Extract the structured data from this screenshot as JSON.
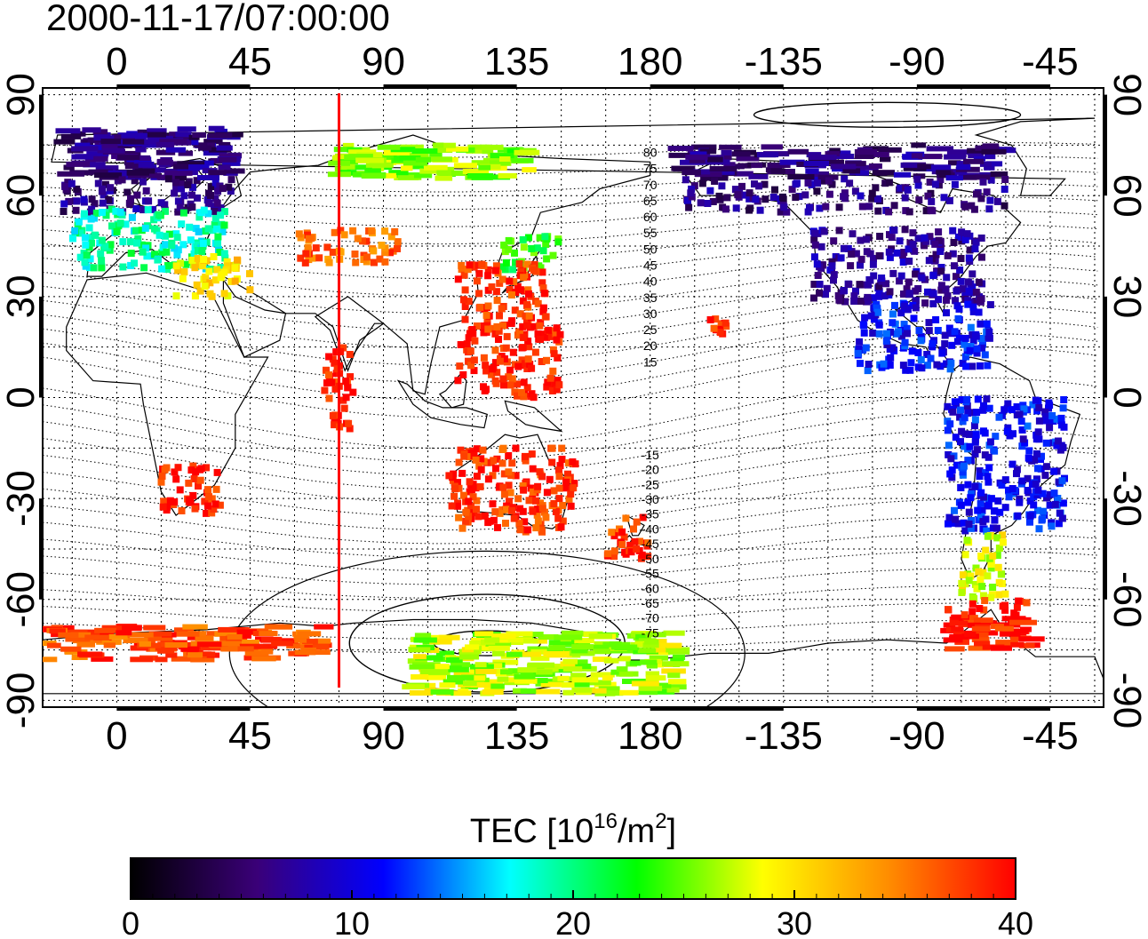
{
  "title": "2000-11-17/07:00:00",
  "map": {
    "top_lon_ticks": [
      "0",
      "45",
      "90",
      "135",
      "180",
      "-135",
      "-90",
      "-45"
    ],
    "bottom_lon_ticks": [
      "0",
      "45",
      "90",
      "135",
      "180",
      "-135",
      "-90",
      "-45"
    ],
    "lat_ticks": [
      "90",
      "60",
      "30",
      "0",
      "-30",
      "-60",
      "-90"
    ],
    "lon_range": [
      -25,
      333
    ],
    "lat_range": [
      -92,
      92
    ],
    "highlight_meridian_lon": 75,
    "highlight_color": "#ff0000",
    "magnetic_lat_labels_north": [
      "80",
      "75",
      "70",
      "65",
      "60",
      "55",
      "50",
      "45",
      "40",
      "35",
      "30",
      "25",
      "20",
      "15"
    ],
    "magnetic_lat_labels_south": [
      "-15",
      "-20",
      "-25",
      "-30",
      "-35",
      "-40",
      "-45",
      "-50",
      "-55",
      "-60",
      "-65",
      "-70",
      "-75"
    ]
  },
  "colorbar": {
    "title_prefix": "TEC  [10",
    "title_exp1": "16",
    "title_mid": "/m",
    "title_exp2": "2",
    "title_suffix": "]",
    "ticks": [
      "0",
      "10",
      "20",
      "30",
      "40"
    ],
    "range": [
      0,
      40
    ],
    "colors": [
      "#000000",
      "#3a0078",
      "#0000ff",
      "#00ffff",
      "#00ff00",
      "#ffff00",
      "#ff8c00",
      "#ff0000"
    ]
  },
  "tec_clusters": [
    {
      "name": "europe-north",
      "lon": [
        -18,
        40
      ],
      "lat": [
        55,
        80
      ],
      "value": 6
    },
    {
      "name": "europe-central",
      "lon": [
        -15,
        38
      ],
      "lat": [
        38,
        56
      ],
      "value": 19
    },
    {
      "name": "europe-south",
      "lon": [
        20,
        45
      ],
      "lat": [
        30,
        42
      ],
      "value": 30
    },
    {
      "name": "central-asia",
      "lon": [
        60,
        95
      ],
      "lat": [
        40,
        50
      ],
      "value": 36
    },
    {
      "name": "siberia",
      "lon": [
        75,
        140
      ],
      "lat": [
        65,
        75
      ],
      "value": 26
    },
    {
      "name": "japan-north",
      "lon": [
        130,
        150
      ],
      "lat": [
        38,
        48
      ],
      "value": 23
    },
    {
      "name": "east-asia",
      "lon": [
        115,
        145
      ],
      "lat": [
        22,
        40
      ],
      "value": 38
    },
    {
      "name": "southeast-asia",
      "lon": [
        115,
        150
      ],
      "lat": [
        0,
        22
      ],
      "value": 39
    },
    {
      "name": "indian-ocean-track",
      "lon": [
        70,
        80
      ],
      "lat": [
        -10,
        15
      ],
      "value": 39
    },
    {
      "name": "south-africa",
      "lon": [
        15,
        35
      ],
      "lat": [
        -35,
        -20
      ],
      "value": 39
    },
    {
      "name": "australia",
      "lon": [
        112,
        155
      ],
      "lat": [
        -40,
        -15
      ],
      "value": 38
    },
    {
      "name": "new-zealand",
      "lon": [
        165,
        180
      ],
      "lat": [
        -48,
        -35
      ],
      "value": 38
    },
    {
      "name": "hawaii",
      "lon": [
        -160,
        -153
      ],
      "lat": [
        18,
        24
      ],
      "value": 39
    },
    {
      "name": "canada-alaska",
      "lon": [
        -170,
        -60
      ],
      "lat": [
        55,
        75
      ],
      "value": 6
    },
    {
      "name": "united-states",
      "lon": [
        -125,
        -68
      ],
      "lat": [
        28,
        50
      ],
      "value": 7
    },
    {
      "name": "central-america",
      "lon": [
        -110,
        -65
      ],
      "lat": [
        8,
        28
      ],
      "value": 11
    },
    {
      "name": "south-america",
      "lon": [
        -80,
        -40
      ],
      "lat": [
        -40,
        0
      ],
      "value": 11
    },
    {
      "name": "patagonia",
      "lon": [
        -75,
        -60
      ],
      "lat": [
        -60,
        -40
      ],
      "value": 28
    },
    {
      "name": "antarctic-peninsula",
      "lon": [
        -80,
        -50
      ],
      "lat": [
        -75,
        -60
      ],
      "value": 39
    },
    {
      "name": "antarctica-west",
      "lon": [
        -25,
        70
      ],
      "lat": [
        -78,
        -68
      ],
      "value": 37
    },
    {
      "name": "antarctica-east",
      "lon": [
        100,
        190
      ],
      "lat": [
        -88,
        -70
      ],
      "value": 27
    }
  ]
}
